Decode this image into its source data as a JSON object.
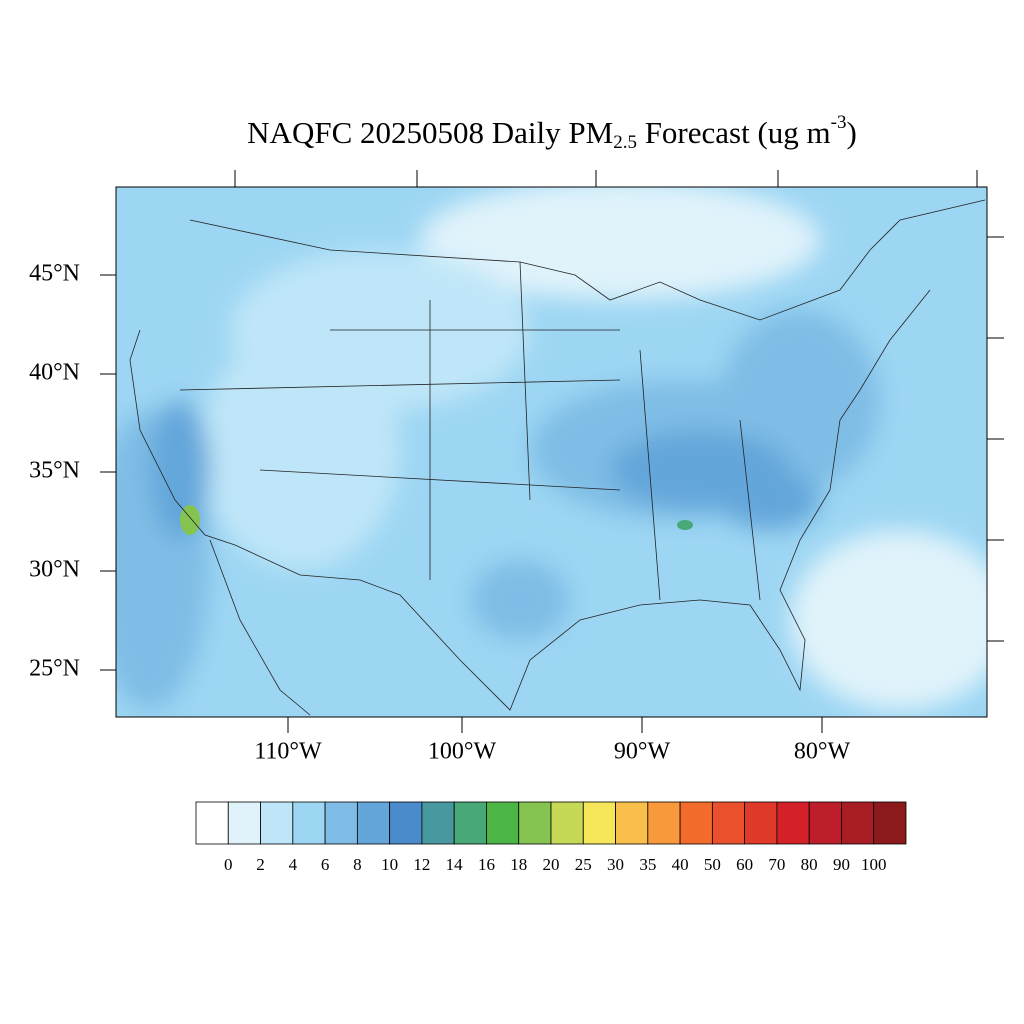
{
  "title": {
    "main": "NAQFC 20250508 Daily PM",
    "sub": "2.5",
    "mid": " Forecast (ug m",
    "sup": "-3",
    "end": ")"
  },
  "lat_labels": [
    "45°N",
    "40°N",
    "35°N",
    "30°N",
    "25°N"
  ],
  "lon_labels": [
    "110°W",
    "100°W",
    "90°W",
    "80°W"
  ],
  "colorbar": {
    "levels": [
      0,
      2,
      4,
      6,
      8,
      10,
      12,
      14,
      16,
      18,
      20,
      25,
      30,
      35,
      40,
      50,
      60,
      70,
      80,
      90,
      100
    ],
    "colors": [
      "#ffffff",
      "#e0f3fb",
      "#bfe6f8",
      "#9dd6f3",
      "#7fbde6",
      "#64a6da",
      "#4a8bcb",
      "#47999f",
      "#48a878",
      "#4bb546",
      "#86c452",
      "#c6d957",
      "#f5e65a",
      "#f9bf4b",
      "#f89a3c",
      "#f36c2c",
      "#e9502b",
      "#df3a29",
      "#d42129",
      "#be1e2a",
      "#a81c24",
      "#8c1a1c"
    ]
  }
}
